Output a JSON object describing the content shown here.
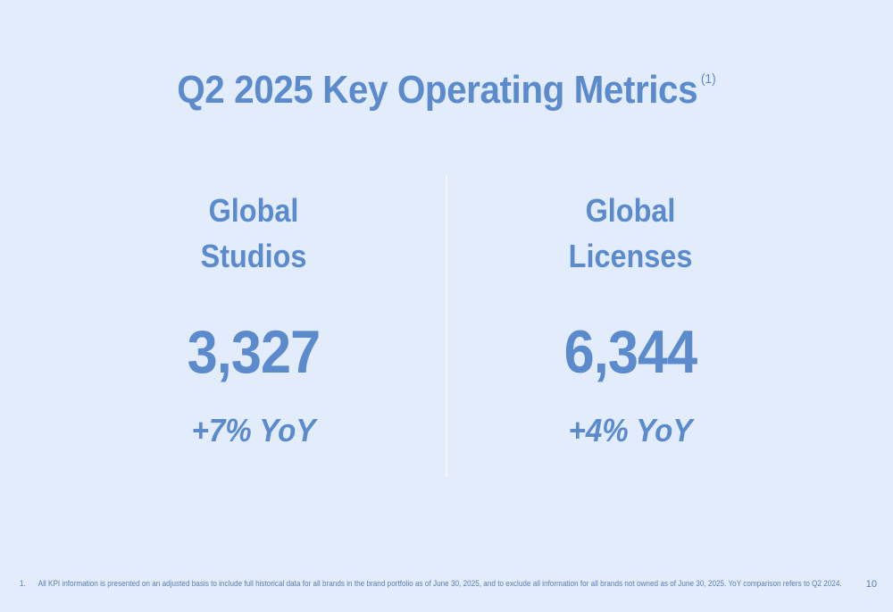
{
  "title": {
    "text": "Q2 2025 Key Operating Metrics",
    "footnote_ref": "(1)"
  },
  "metrics": [
    {
      "label_line1": "Global",
      "label_line2": "Studios",
      "value": "3,327",
      "change": "+7% YoY"
    },
    {
      "label_line1": "Global",
      "label_line2": "Licenses",
      "value": "6,344",
      "change": "+4% YoY"
    }
  ],
  "footnote": {
    "number": "1.",
    "text": "All KPI information is presented on an adjusted basis to include full historical data for all brands in the brand portfolio as of June 30, 2025, and to exclude all information for all brands not owned as of June 30, 2025. YoY comparison refers to Q2 2024."
  },
  "page_number": "10",
  "colors": {
    "background": "#e2ecfa",
    "accent": "#5b8bcc"
  }
}
